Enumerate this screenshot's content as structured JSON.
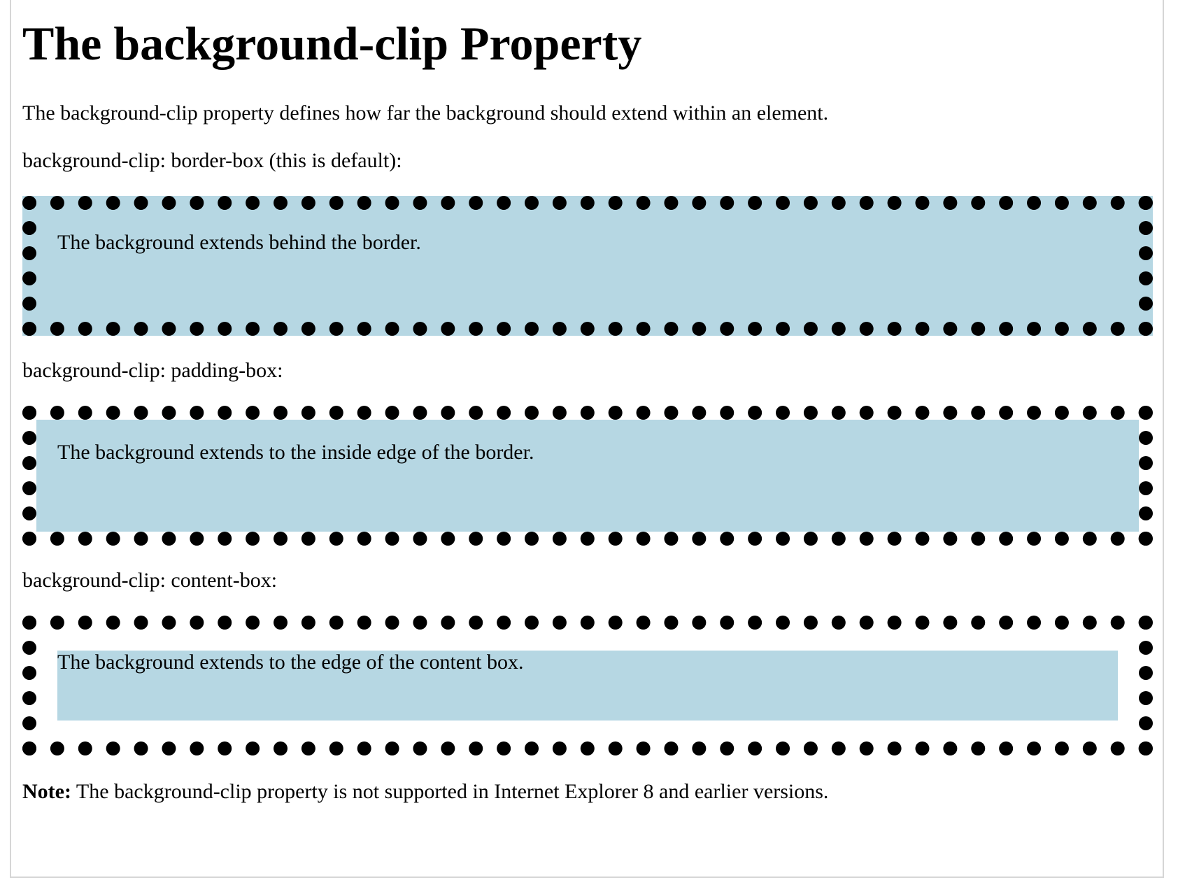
{
  "page": {
    "heading": "The background-clip Property",
    "intro": "The background-clip property defines how far the background should extend within an element.",
    "sections": [
      {
        "label": "background-clip: border-box (this is default):",
        "box_text": "The background extends behind the border."
      },
      {
        "label": "background-clip: padding-box:",
        "box_text": "The background extends to the inside edge of the border."
      },
      {
        "label": "background-clip: content-box:",
        "box_text": "The background extends to the edge of the content box."
      }
    ],
    "note_label": "Note:",
    "note_text": " The background-clip property is not supported in Internet Explorer 8 and earlier versions."
  },
  "colors": {
    "box_background": "#b6d7e3",
    "border": "#000000",
    "page_background": "#ffffff"
  }
}
